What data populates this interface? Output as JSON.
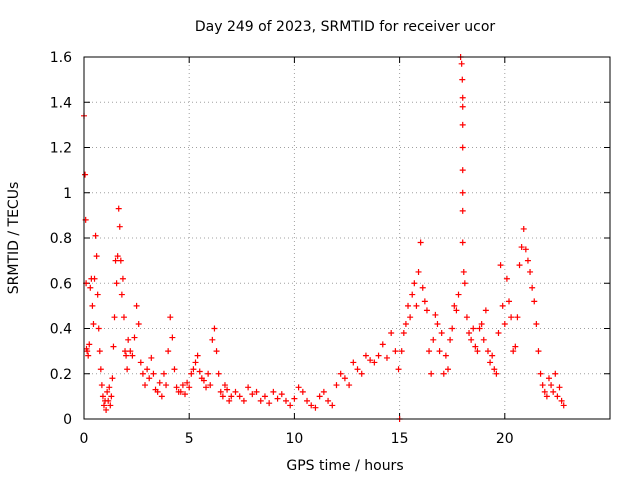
{
  "chart_data": {
    "type": "scatter",
    "title": "Day 249 of 2023, SRMTID for receiver ucor",
    "xlabel": "GPS time / hours",
    "ylabel": "SRMTID / TECUs",
    "xlim": [
      0,
      25
    ],
    "ylim": [
      0,
      1.6
    ],
    "x_ticks": [
      0,
      5,
      10,
      15,
      20
    ],
    "x_tick_labels": [
      "0",
      "5",
      "10",
      "15",
      "20"
    ],
    "y_ticks": [
      0,
      0.2,
      0.4,
      0.6,
      0.8,
      1,
      1.2,
      1.4,
      1.6
    ],
    "y_tick_labels": [
      "0",
      "0.2",
      "0.4",
      "0.6",
      "0.8",
      "1",
      "1.2",
      "1.4",
      "1.6"
    ],
    "grid": true,
    "marker": "+",
    "color": "#ff0000",
    "series": [
      {
        "name": "SRMTID",
        "x": [
          0.0,
          0.05,
          0.08,
          0.1,
          0.12,
          0.15,
          0.2,
          0.25,
          0.3,
          0.35,
          0.4,
          0.45,
          0.5,
          0.55,
          0.6,
          0.65,
          0.7,
          0.75,
          0.8,
          0.85,
          0.9,
          0.95,
          1.0,
          1.05,
          1.1,
          1.15,
          1.2,
          1.25,
          1.3,
          1.35,
          1.4,
          1.45,
          1.5,
          1.55,
          1.6,
          1.65,
          1.7,
          1.75,
          1.8,
          1.85,
          1.9,
          1.95,
          2.0,
          2.05,
          2.1,
          2.2,
          2.3,
          2.4,
          2.5,
          2.6,
          2.7,
          2.8,
          2.9,
          3.0,
          3.1,
          3.2,
          3.3,
          3.4,
          3.5,
          3.6,
          3.7,
          3.8,
          3.9,
          4.0,
          4.1,
          4.2,
          4.3,
          4.4,
          4.5,
          4.6,
          4.7,
          4.8,
          4.9,
          5.0,
          5.1,
          5.2,
          5.3,
          5.4,
          5.5,
          5.6,
          5.7,
          5.8,
          5.9,
          6.0,
          6.1,
          6.2,
          6.3,
          6.4,
          6.5,
          6.6,
          6.7,
          6.8,
          6.9,
          7.0,
          7.2,
          7.4,
          7.6,
          7.8,
          8.0,
          8.2,
          8.4,
          8.6,
          8.8,
          9.0,
          9.2,
          9.4,
          9.6,
          9.8,
          10.0,
          10.2,
          10.4,
          10.6,
          10.8,
          11.0,
          11.2,
          11.4,
          11.6,
          11.8,
          12.0,
          12.2,
          12.4,
          12.6,
          12.8,
          13.0,
          13.2,
          13.4,
          13.6,
          13.8,
          14.0,
          14.2,
          14.4,
          14.6,
          14.8,
          14.95,
          15.0,
          15.1,
          15.2,
          15.3,
          15.4,
          15.5,
          15.6,
          15.7,
          15.8,
          15.9,
          16.0,
          16.1,
          16.2,
          16.3,
          16.4,
          16.5,
          16.6,
          16.7,
          16.8,
          16.9,
          17.0,
          17.1,
          17.2,
          17.3,
          17.4,
          17.5,
          17.6,
          17.7,
          17.8,
          17.9,
          17.95,
          17.98,
          18.0,
          18.0,
          18.0,
          18.0,
          18.0,
          18.0,
          18.0,
          18.0,
          18.05,
          18.1,
          18.2,
          18.3,
          18.4,
          18.5,
          18.6,
          18.7,
          18.8,
          18.9,
          19.0,
          19.1,
          19.2,
          19.3,
          19.4,
          19.5,
          19.6,
          19.7,
          19.8,
          19.9,
          20.0,
          20.1,
          20.2,
          20.3,
          20.4,
          20.5,
          20.6,
          20.7,
          20.8,
          20.9,
          21.0,
          21.1,
          21.2,
          21.3,
          21.4,
          21.5,
          21.6,
          21.7,
          21.8,
          21.9,
          22.0,
          22.1,
          22.2,
          22.3,
          22.4,
          22.5,
          22.6,
          22.7,
          22.8
        ],
        "y": [
          1.34,
          1.08,
          0.88,
          0.6,
          0.31,
          0.3,
          0.28,
          0.33,
          0.58,
          0.62,
          0.5,
          0.42,
          0.62,
          0.81,
          0.72,
          0.55,
          0.4,
          0.3,
          0.22,
          0.15,
          0.1,
          0.06,
          0.08,
          0.04,
          0.12,
          0.08,
          0.14,
          0.06,
          0.1,
          0.18,
          0.32,
          0.45,
          0.7,
          0.6,
          0.72,
          0.93,
          0.85,
          0.7,
          0.55,
          0.62,
          0.45,
          0.3,
          0.28,
          0.22,
          0.35,
          0.3,
          0.28,
          0.36,
          0.5,
          0.42,
          0.25,
          0.2,
          0.15,
          0.22,
          0.18,
          0.27,
          0.2,
          0.13,
          0.12,
          0.16,
          0.1,
          0.2,
          0.15,
          0.3,
          0.45,
          0.36,
          0.22,
          0.14,
          0.12,
          0.12,
          0.15,
          0.11,
          0.16,
          0.14,
          0.2,
          0.22,
          0.25,
          0.28,
          0.21,
          0.18,
          0.17,
          0.14,
          0.2,
          0.15,
          0.35,
          0.4,
          0.3,
          0.2,
          0.12,
          0.1,
          0.15,
          0.13,
          0.08,
          0.1,
          0.12,
          0.1,
          0.08,
          0.14,
          0.11,
          0.12,
          0.08,
          0.1,
          0.07,
          0.12,
          0.09,
          0.11,
          0.08,
          0.06,
          0.09,
          0.14,
          0.12,
          0.08,
          0.06,
          0.05,
          0.1,
          0.12,
          0.08,
          0.06,
          0.15,
          0.2,
          0.18,
          0.15,
          0.25,
          0.22,
          0.2,
          0.28,
          0.26,
          0.25,
          0.28,
          0.33,
          0.27,
          0.38,
          0.3,
          0.22,
          0.0,
          0.3,
          0.38,
          0.42,
          0.5,
          0.45,
          0.55,
          0.6,
          0.5,
          0.65,
          0.78,
          0.58,
          0.52,
          0.48,
          0.3,
          0.2,
          0.35,
          0.46,
          0.42,
          0.3,
          0.38,
          0.2,
          0.28,
          0.22,
          0.35,
          0.4,
          0.5,
          0.48,
          0.55,
          1.6,
          1.57,
          1.5,
          1.42,
          1.38,
          1.3,
          1.2,
          1.1,
          1.0,
          0.92,
          0.78,
          0.65,
          0.6,
          0.45,
          0.38,
          0.35,
          0.4,
          0.32,
          0.3,
          0.4,
          0.42,
          0.35,
          0.48,
          0.3,
          0.25,
          0.28,
          0.22,
          0.2,
          0.38,
          0.68,
          0.5,
          0.42,
          0.62,
          0.52,
          0.45,
          0.3,
          0.32,
          0.45,
          0.68,
          0.76,
          0.84,
          0.75,
          0.7,
          0.65,
          0.58,
          0.52,
          0.42,
          0.3,
          0.2,
          0.15,
          0.12,
          0.1,
          0.18,
          0.15,
          0.12,
          0.2,
          0.1,
          0.14,
          0.08,
          0.06
        ]
      }
    ]
  }
}
